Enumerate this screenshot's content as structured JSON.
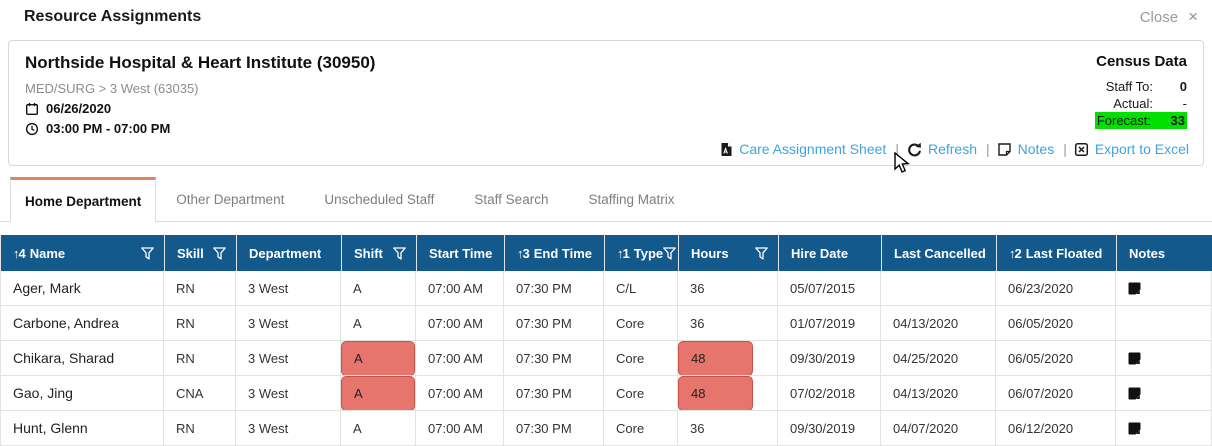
{
  "header": {
    "title": "Resource Assignments",
    "close_label": "Close",
    "close_icon": "×"
  },
  "info_panel": {
    "facility": "Northside Hospital & Heart Institute (30950)",
    "unit_path": "MED/SURG > 3 West (63035)",
    "date": "06/26/2020",
    "time_range": "03:00 PM - 07:00 PM",
    "census": {
      "title": "Census Data",
      "rows": [
        {
          "label": "Staff To:",
          "value": "0",
          "highlight": false
        },
        {
          "label": "Actual:",
          "value": "-",
          "highlight": false
        },
        {
          "label": "Forecast:",
          "value": "33",
          "highlight": true
        }
      ]
    },
    "actions": [
      {
        "label": "Care Assignment Sheet",
        "icon": "pdf-icon"
      },
      {
        "label": "Refresh",
        "icon": "refresh-icon"
      },
      {
        "label": "Notes",
        "icon": "note-outline-icon"
      },
      {
        "label": "Export to Excel",
        "icon": "excel-icon"
      }
    ]
  },
  "tabs": [
    {
      "label": "Home Department",
      "active": true
    },
    {
      "label": "Other Department",
      "active": false
    },
    {
      "label": "Unscheduled Staff",
      "active": false
    },
    {
      "label": "Staff Search",
      "active": false
    },
    {
      "label": "Staffing Matrix",
      "active": false
    }
  ],
  "table": {
    "columns": [
      {
        "label": "Name",
        "sort_indicator": "↑4",
        "filter": true
      },
      {
        "label": "Skill",
        "sort_indicator": "",
        "filter": true
      },
      {
        "label": "Department",
        "sort_indicator": "",
        "filter": false
      },
      {
        "label": "Shift",
        "sort_indicator": "",
        "filter": true
      },
      {
        "label": "Start Time",
        "sort_indicator": "",
        "filter": false
      },
      {
        "label": "End Time",
        "sort_indicator": "↑3",
        "filter": false
      },
      {
        "label": "Type",
        "sort_indicator": "↑1",
        "filter": true
      },
      {
        "label": "Hours",
        "sort_indicator": "",
        "filter": true
      },
      {
        "label": "Hire Date",
        "sort_indicator": "",
        "filter": false
      },
      {
        "label": "Last Cancelled",
        "sort_indicator": "",
        "filter": false
      },
      {
        "label": "Last Floated",
        "sort_indicator": "↑2",
        "filter": false
      },
      {
        "label": "Notes",
        "sort_indicator": "",
        "filter": false
      }
    ],
    "rows": [
      {
        "name": "Ager, Mark",
        "skill": "RN",
        "department": "3 West",
        "shift": "A",
        "shift_alert": false,
        "start_time": "07:00 AM",
        "end_time": "07:30 PM",
        "type": "C/L",
        "hours": "36",
        "hours_alert": false,
        "hire_date": "05/07/2015",
        "last_cancelled": "",
        "last_floated": "06/23/2020",
        "has_note": true
      },
      {
        "name": "Carbone, Andrea",
        "skill": "RN",
        "department": "3 West",
        "shift": "A",
        "shift_alert": false,
        "start_time": "07:00 AM",
        "end_time": "07:30 PM",
        "type": "Core",
        "hours": "36",
        "hours_alert": false,
        "hire_date": "01/07/2019",
        "last_cancelled": "04/13/2020",
        "last_floated": "06/05/2020",
        "has_note": false
      },
      {
        "name": "Chikara, Sharad",
        "skill": "RN",
        "department": "3 West",
        "shift": "A",
        "shift_alert": true,
        "start_time": "07:00 AM",
        "end_time": "07:30 PM",
        "type": "Core",
        "hours": "48",
        "hours_alert": true,
        "hire_date": "09/30/2019",
        "last_cancelled": "04/25/2020",
        "last_floated": "06/05/2020",
        "has_note": true
      },
      {
        "name": "Gao, Jing",
        "skill": "CNA",
        "department": "3 West",
        "shift": "A",
        "shift_alert": true,
        "start_time": "07:00 AM",
        "end_time": "07:30 PM",
        "type": "Core",
        "hours": "48",
        "hours_alert": true,
        "hire_date": "07/02/2018",
        "last_cancelled": "04/13/2020",
        "last_floated": "06/07/2020",
        "has_note": true
      },
      {
        "name": "Hunt, Glenn",
        "skill": "RN",
        "department": "3 West",
        "shift": "A",
        "shift_alert": false,
        "start_time": "07:00 AM",
        "end_time": "07:30 PM",
        "type": "Core",
        "hours": "36",
        "hours_alert": false,
        "hire_date": "09/30/2019",
        "last_cancelled": "04/07/2020",
        "last_floated": "06/12/2020",
        "has_note": true
      }
    ]
  },
  "colors": {
    "header_blue": "#14598c",
    "alert_fill": "#e5756d",
    "alert_border": "#c4524b",
    "forecast_green": "#00df00",
    "link_blue": "#3fa3df",
    "tab_accent": "#e08264"
  }
}
